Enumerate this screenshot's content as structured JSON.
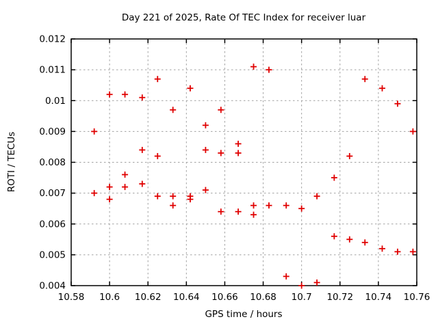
{
  "chart_data": {
    "type": "scatter",
    "title": "Day 221 of 2025, Rate Of TEC Index for receiver luar",
    "xlabel": "GPS time / hours",
    "ylabel": "ROTI / TECUs",
    "xlim": [
      10.58,
      10.76
    ],
    "ylim": [
      0.004,
      0.012
    ],
    "x_ticks": [
      10.58,
      10.6,
      10.62,
      10.64,
      10.66,
      10.68,
      10.7,
      10.72,
      10.74,
      10.76
    ],
    "x_tick_labels": [
      "10.58",
      "10.6",
      "10.62",
      "10.64",
      "10.66",
      "10.68",
      "10.7",
      "10.72",
      "10.74",
      "10.76"
    ],
    "y_ticks": [
      0.004,
      0.005,
      0.006,
      0.007,
      0.008,
      0.009,
      0.01,
      0.011,
      0.012
    ],
    "y_tick_labels": [
      "0.004",
      "0.005",
      "0.006",
      "0.007",
      "0.008",
      "0.009",
      "0.01",
      "0.011",
      "0.012"
    ],
    "grid": true,
    "legend": "none",
    "marker": {
      "shape": "plus",
      "color": "#e00000",
      "size": 9,
      "stroke_width": 1.8
    },
    "colors": {
      "axis": "#000000",
      "grid": "#a0a0a0",
      "background": "#ffffff",
      "text": "#000000"
    },
    "series": [
      {
        "name": "ROTI",
        "points": [
          [
            10.592,
            0.009
          ],
          [
            10.592,
            0.007
          ],
          [
            10.6,
            0.0102
          ],
          [
            10.6,
            0.0072
          ],
          [
            10.6,
            0.0068
          ],
          [
            10.608,
            0.0102
          ],
          [
            10.608,
            0.0076
          ],
          [
            10.608,
            0.0072
          ],
          [
            10.617,
            0.0101
          ],
          [
            10.617,
            0.0084
          ],
          [
            10.617,
            0.0073
          ],
          [
            10.625,
            0.0107
          ],
          [
            10.625,
            0.0082
          ],
          [
            10.625,
            0.0069
          ],
          [
            10.633,
            0.0097
          ],
          [
            10.633,
            0.0069
          ],
          [
            10.633,
            0.0066
          ],
          [
            10.642,
            0.0104
          ],
          [
            10.642,
            0.0069
          ],
          [
            10.642,
            0.0068
          ],
          [
            10.65,
            0.0092
          ],
          [
            10.65,
            0.0084
          ],
          [
            10.65,
            0.0071
          ],
          [
            10.658,
            0.0097
          ],
          [
            10.658,
            0.0083
          ],
          [
            10.658,
            0.0064
          ],
          [
            10.667,
            0.0086
          ],
          [
            10.667,
            0.0083
          ],
          [
            10.667,
            0.0064
          ],
          [
            10.675,
            0.0111
          ],
          [
            10.675,
            0.0066
          ],
          [
            10.675,
            0.0063
          ],
          [
            10.683,
            0.011
          ],
          [
            10.683,
            0.0066
          ],
          [
            10.692,
            0.0066
          ],
          [
            10.692,
            0.0043
          ],
          [
            10.7,
            0.0065
          ],
          [
            10.7,
            0.004
          ],
          [
            10.708,
            0.0069
          ],
          [
            10.708,
            0.0041
          ],
          [
            10.717,
            0.0075
          ],
          [
            10.717,
            0.0056
          ],
          [
            10.725,
            0.0082
          ],
          [
            10.725,
            0.0055
          ],
          [
            10.733,
            0.0107
          ],
          [
            10.733,
            0.0054
          ],
          [
            10.742,
            0.0104
          ],
          [
            10.742,
            0.0052
          ],
          [
            10.75,
            0.0099
          ],
          [
            10.75,
            0.0051
          ],
          [
            10.758,
            0.009
          ],
          [
            10.758,
            0.0051
          ]
        ]
      }
    ]
  }
}
